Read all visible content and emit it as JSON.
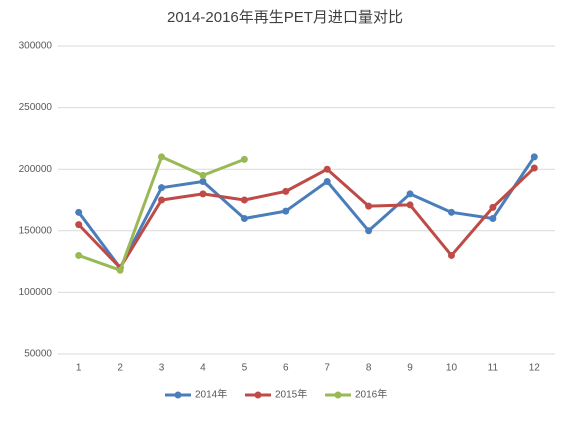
{
  "chart_data": {
    "type": "line",
    "title": "2014-2016年再生PET月进口量对比",
    "categories": [
      "1",
      "2",
      "3",
      "4",
      "5",
      "6",
      "7",
      "8",
      "9",
      "10",
      "11",
      "12"
    ],
    "series": [
      {
        "name": "2014年",
        "color": "#4a7ebb",
        "values": [
          165000,
          120000,
          185000,
          190000,
          160000,
          166000,
          190000,
          150000,
          180000,
          165000,
          160000,
          210000
        ]
      },
      {
        "name": "2015年",
        "color": "#be4b48",
        "values": [
          155000,
          120000,
          175000,
          180000,
          175000,
          182000,
          200000,
          170000,
          171000,
          130000,
          169000,
          201000
        ]
      },
      {
        "name": "2016年",
        "color": "#98b954",
        "values": [
          130000,
          118000,
          210000,
          195000,
          208000,
          null,
          null,
          null,
          null,
          null,
          null,
          null
        ]
      }
    ],
    "ylim": [
      50000,
      300000
    ],
    "yticks": [
      50000,
      100000,
      150000,
      200000,
      250000,
      300000
    ],
    "grid": true,
    "legend": "bottom"
  }
}
